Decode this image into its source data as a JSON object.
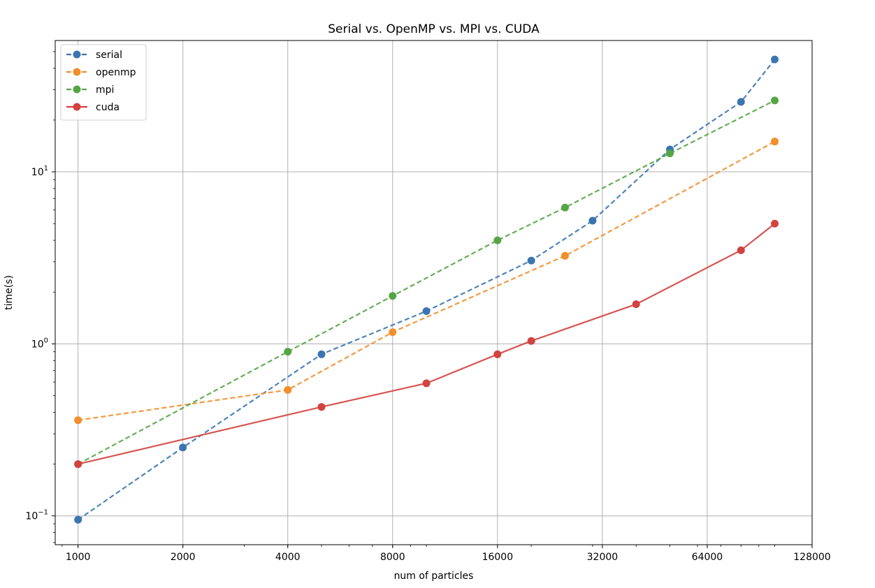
{
  "chart_data": {
    "type": "line",
    "title": "Serial vs. OpenMP vs. MPI vs. CUDA",
    "xlabel": "num of particles",
    "ylabel": "time(s)",
    "xscale": "log2",
    "yscale": "log10",
    "xlim": [
      860,
      128000
    ],
    "ylim": [
      0.068,
      58
    ],
    "x_ticks": [
      1000,
      2000,
      4000,
      8000,
      16000,
      32000,
      64000,
      128000
    ],
    "x_tick_labels": [
      "1000",
      "2000",
      "4000",
      "8000",
      "16000",
      "32000",
      "64000",
      "128000"
    ],
    "y_ticks": [
      {
        "value": 0.1,
        "base": "10",
        "exp": "−1"
      },
      {
        "value": 1,
        "base": "10",
        "exp": "0"
      },
      {
        "value": 10,
        "base": "10",
        "exp": "1"
      }
    ],
    "grid": true,
    "legend_position": "upper-left",
    "series": [
      {
        "name": "serial",
        "color": "#3b75b1",
        "linestyle": "dashed",
        "x": [
          1000,
          2000,
          5000,
          10000,
          20000,
          30000,
          50000,
          80000,
          100000
        ],
        "y": [
          0.095,
          0.25,
          0.87,
          1.55,
          3.05,
          5.2,
          13.5,
          25.5,
          45
        ]
      },
      {
        "name": "openmp",
        "color": "#f28e2b",
        "linestyle": "dashed",
        "x": [
          1000,
          4000,
          8000,
          25000,
          100000
        ],
        "y": [
          0.36,
          0.54,
          1.17,
          3.25,
          15
        ]
      },
      {
        "name": "mpi",
        "color": "#55a545",
        "linestyle": "dashed",
        "x": [
          1000,
          4000,
          8000,
          16000,
          25000,
          50000,
          100000
        ],
        "y": [
          0.2,
          0.9,
          1.9,
          4.0,
          6.2,
          12.8,
          26
        ]
      },
      {
        "name": "cuda",
        "color": "#d2423f",
        "linestyle": "solid",
        "x": [
          1000,
          5000,
          10000,
          16000,
          20000,
          40000,
          80000,
          100000
        ],
        "y": [
          0.2,
          0.43,
          0.59,
          0.87,
          1.04,
          1.7,
          3.5,
          5.0
        ]
      }
    ]
  }
}
